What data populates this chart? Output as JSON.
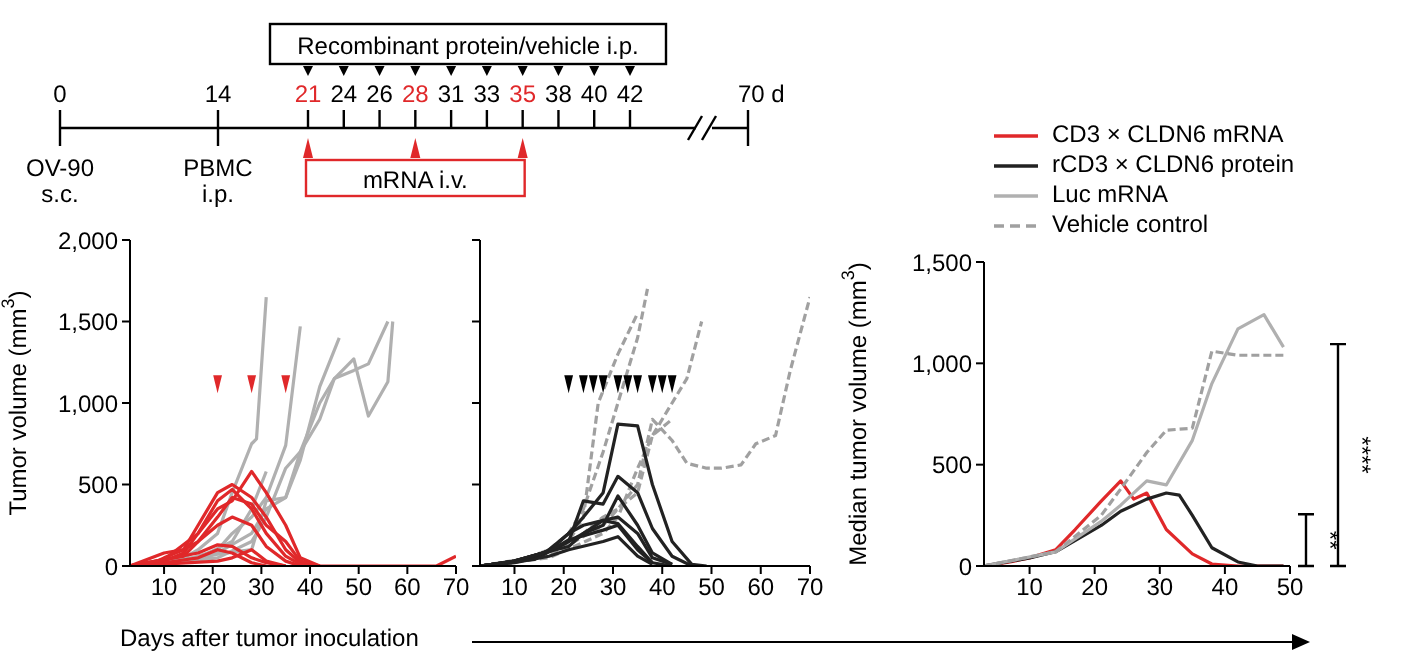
{
  "chart_data": [
    {
      "type": "other",
      "categories": [
        "0",
        "14",
        "21",
        "24",
        "26",
        "28",
        "31",
        "33",
        "35",
        "38",
        "40",
        "42",
        "70 d"
      ],
      "colors": [
        "#000000",
        "#000000",
        "#e0282a",
        "#000000",
        "#000000",
        "#e0282a",
        "#000000",
        "#000000",
        "#e0282a",
        "#000000",
        "#000000",
        "#000000",
        "#000000"
      ],
      "annotations": [
        "Recombinant protein/vehicle i.p.",
        "mRNA i.v.",
        "OV-90 s.c.",
        "PBMC i.p."
      ]
    },
    {
      "type": "line",
      "ylabel": "Tumor volume (mm$^{3}$)",
      "xlabel": "Days after tumor inoculation",
      "xlim": [
        3,
        70
      ],
      "xticks": [
        10,
        20,
        30,
        40,
        50,
        60,
        70
      ],
      "ylim": [
        0,
        2000
      ],
      "yticks": [
        0,
        {
          "value": 500,
          "label": "500"
        },
        {
          "value": 1000,
          "label": "1,000"
        },
        {
          "value": 1500,
          "label": "1,500"
        },
        {
          "value": 2000,
          "label": "2,000"
        }
      ],
      "grid": false,
      "series": [
        {
          "color": "#b0b0b0",
          "x": [
            3,
            10,
            14,
            17,
            21,
            24,
            28,
            29,
            31
          ],
          "values": [
            0,
            20,
            50,
            100,
            200,
            450,
            750,
            780,
            1650
          ]
        },
        {
          "color": "#b0b0b0",
          "x": [
            3,
            14,
            21,
            24,
            28,
            31,
            35,
            38
          ],
          "values": [
            0,
            30,
            100,
            200,
            300,
            420,
            740,
            1470
          ]
        },
        {
          "color": "#b0b0b0",
          "x": [
            3,
            17,
            21,
            28,
            31,
            35,
            38,
            42,
            45,
            49,
            52,
            56,
            57
          ],
          "values": [
            0,
            30,
            80,
            200,
            350,
            420,
            700,
            1000,
            1150,
            1270,
            920,
            1130,
            1500
          ]
        },
        {
          "color": "#b0b0b0",
          "x": [
            3,
            21,
            28,
            31,
            35,
            38,
            42,
            45,
            49,
            52,
            56
          ],
          "values": [
            0,
            50,
            150,
            300,
            600,
            700,
            900,
            1150,
            1200,
            1240,
            1500
          ]
        },
        {
          "color": "#b0b0b0",
          "x": [
            3,
            28,
            31,
            35,
            38,
            42,
            46
          ],
          "values": [
            0,
            100,
            400,
            420,
            650,
            1100,
            1400
          ]
        },
        {
          "color": "#b0b0b0",
          "x": [
            3,
            17,
            24,
            28,
            31
          ],
          "values": [
            0,
            50,
            150,
            350,
            580
          ]
        },
        {
          "color": "#e0282a",
          "x": [
            3,
            7,
            10,
            14,
            17,
            21,
            24,
            28,
            31,
            35,
            38,
            42
          ],
          "values": [
            0,
            10,
            50,
            100,
            250,
            450,
            500,
            420,
            300,
            100,
            20,
            0
          ]
        },
        {
          "color": "#e0282a",
          "x": [
            3,
            10,
            14,
            17,
            21,
            24,
            28,
            31,
            35,
            38,
            42
          ],
          "values": [
            0,
            30,
            80,
            200,
            350,
            400,
            580,
            450,
            250,
            50,
            0
          ]
        },
        {
          "color": "#e0282a",
          "x": [
            3,
            14,
            17,
            21,
            24,
            28,
            31,
            35,
            38,
            42
          ],
          "values": [
            0,
            60,
            150,
            300,
            420,
            380,
            250,
            150,
            30,
            0
          ]
        },
        {
          "color": "#e0282a",
          "x": [
            3,
            10,
            14,
            17,
            21,
            24,
            28,
            31,
            35,
            38
          ],
          "values": [
            0,
            80,
            100,
            150,
            250,
            300,
            250,
            120,
            30,
            0
          ]
        },
        {
          "color": "#e0282a",
          "x": [
            3,
            17,
            21,
            24,
            28,
            31,
            35
          ],
          "values": [
            0,
            80,
            130,
            120,
            50,
            20,
            0
          ]
        },
        {
          "color": "#e0282a",
          "x": [
            3,
            10,
            17,
            21,
            24,
            28,
            31
          ],
          "values": [
            0,
            20,
            50,
            100,
            80,
            20,
            0
          ]
        },
        {
          "color": "#e0282a",
          "x": [
            3,
            10,
            17,
            21,
            24,
            28,
            31,
            35,
            38,
            42,
            49,
            56,
            63,
            66,
            70
          ],
          "values": [
            0,
            40,
            200,
            400,
            470,
            350,
            200,
            60,
            10,
            0,
            0,
            0,
            0,
            0,
            60
          ]
        },
        {
          "color": "#e0282a",
          "x": [
            3,
            21,
            24,
            28,
            31,
            35
          ],
          "values": [
            0,
            30,
            50,
            100,
            30,
            0
          ]
        }
      ]
    },
    {
      "type": "line",
      "tick_labels": "x",
      "xlim": [
        3,
        70
      ],
      "xticks": [
        10,
        20,
        30,
        40,
        50,
        60,
        70
      ],
      "ylim": [
        0,
        2000
      ],
      "yticks": [
        0,
        500,
        1000,
        1500,
        2000
      ],
      "grid": false,
      "series": [
        {
          "color": "#a0a0a0",
          "line_style": "dashed",
          "x": [
            3,
            10,
            17,
            21,
            24,
            28,
            31,
            35,
            37
          ],
          "values": [
            0,
            20,
            100,
            200,
            350,
            700,
            1000,
            1400,
            1700
          ]
        },
        {
          "color": "#a0a0a0",
          "line_style": "dashed",
          "x": [
            3,
            10,
            17,
            21,
            24,
            27,
            31,
            35
          ],
          "values": [
            0,
            20,
            80,
            150,
            300,
            1000,
            1300,
            1550
          ]
        },
        {
          "color": "#a0a0a0",
          "line_style": "dashed",
          "x": [
            3,
            17,
            28,
            31,
            35,
            38,
            42,
            45,
            48
          ],
          "values": [
            0,
            50,
            200,
            300,
            600,
            800,
            1000,
            1150,
            1500
          ]
        },
        {
          "color": "#a0a0a0",
          "line_style": "dashed",
          "x": [
            3,
            17,
            28,
            31,
            35,
            38,
            42,
            45,
            49,
            52,
            56,
            59,
            63,
            66,
            70
          ],
          "values": [
            0,
            60,
            250,
            350,
            500,
            900,
            770,
            630,
            600,
            600,
            620,
            750,
            800,
            1200,
            1650
          ]
        },
        {
          "color": "#a0a0a0",
          "line_style": "dashed",
          "x": [
            3,
            17,
            24,
            28,
            31,
            35,
            38,
            42
          ],
          "values": [
            0,
            70,
            200,
            300,
            350,
            450,
            800,
            900
          ]
        },
        {
          "color": "#222222",
          "x": [
            3,
            10,
            14,
            17,
            21,
            24,
            28,
            31,
            35,
            38,
            42,
            46,
            49
          ],
          "values": [
            0,
            30,
            50,
            100,
            200,
            300,
            450,
            870,
            860,
            500,
            150,
            10,
            0
          ]
        },
        {
          "color": "#222222",
          "x": [
            3,
            10,
            14,
            21,
            24,
            28,
            31,
            35,
            38,
            42,
            46
          ],
          "values": [
            0,
            30,
            40,
            150,
            400,
            380,
            550,
            450,
            230,
            60,
            0
          ]
        },
        {
          "color": "#222222",
          "x": [
            3,
            10,
            17,
            21,
            24,
            28,
            31,
            35,
            38,
            42
          ],
          "values": [
            0,
            30,
            90,
            120,
            200,
            250,
            430,
            250,
            80,
            10
          ]
        },
        {
          "color": "#222222",
          "x": [
            3,
            10,
            17,
            21,
            24,
            28,
            31,
            35,
            38,
            42
          ],
          "values": [
            0,
            30,
            90,
            150,
            200,
            280,
            300,
            200,
            50,
            10
          ]
        },
        {
          "color": "#222222",
          "x": [
            3,
            10,
            17,
            21,
            24,
            28,
            31,
            35,
            38
          ],
          "values": [
            0,
            30,
            90,
            200,
            250,
            280,
            260,
            120,
            20
          ]
        },
        {
          "color": "#222222",
          "x": [
            3,
            10,
            17,
            21,
            28,
            31,
            35,
            38,
            42
          ],
          "values": [
            0,
            30,
            90,
            160,
            220,
            250,
            100,
            20,
            0
          ]
        },
        {
          "color": "#222222",
          "x": [
            3,
            10,
            17,
            21,
            28,
            31,
            35,
            38
          ],
          "values": [
            0,
            20,
            60,
            100,
            150,
            180,
            60,
            10
          ]
        }
      ]
    },
    {
      "type": "line",
      "ylabel": "Median tumor volume (mm$^{3}$)",
      "xlim": [
        3,
        50
      ],
      "xticks": [
        10,
        20,
        30,
        40,
        50
      ],
      "ylim": [
        0,
        1500
      ],
      "yticks": [
        0,
        {
          "value": 500,
          "label": "500"
        },
        {
          "value": 1000,
          "label": "1,000"
        },
        {
          "value": 1500,
          "label": "1,500"
        }
      ],
      "grid": false,
      "legend": "top",
      "annotations": [
        "**",
        "****"
      ],
      "series": [
        {
          "name": "CD3 × CLDN6 mRNA",
          "color": "#e0282a",
          "x": [
            3,
            7,
            10,
            14,
            17,
            21,
            24,
            26,
            28,
            31,
            35,
            38,
            42,
            49
          ],
          "values": [
            0,
            20,
            40,
            80,
            180,
            320,
            420,
            330,
            360,
            180,
            60,
            10,
            0,
            0
          ]
        },
        {
          "name": "rCD3 × CLDN6 protein",
          "color": "#222222",
          "x": [
            3,
            10,
            14,
            21,
            24,
            28,
            31,
            33,
            35,
            38,
            42,
            45,
            49
          ],
          "values": [
            0,
            40,
            70,
            200,
            270,
            330,
            360,
            350,
            250,
            90,
            20,
            0,
            0
          ]
        },
        {
          "name": "Luc mRNA",
          "color": "#b0b0b0",
          "x": [
            3,
            14,
            21,
            24,
            28,
            31,
            35,
            38,
            42,
            46,
            49
          ],
          "values": [
            0,
            70,
            220,
            300,
            420,
            400,
            620,
            900,
            1170,
            1240,
            1080
          ]
        },
        {
          "name": "Vehicle control",
          "color": "#a0a0a0",
          "line_style": "dashed",
          "x": [
            3,
            14,
            21,
            24,
            28,
            31,
            35,
            38,
            42,
            49
          ],
          "values": [
            0,
            70,
            250,
            380,
            560,
            670,
            680,
            1060,
            1040,
            1040
          ]
        }
      ]
    }
  ]
}
